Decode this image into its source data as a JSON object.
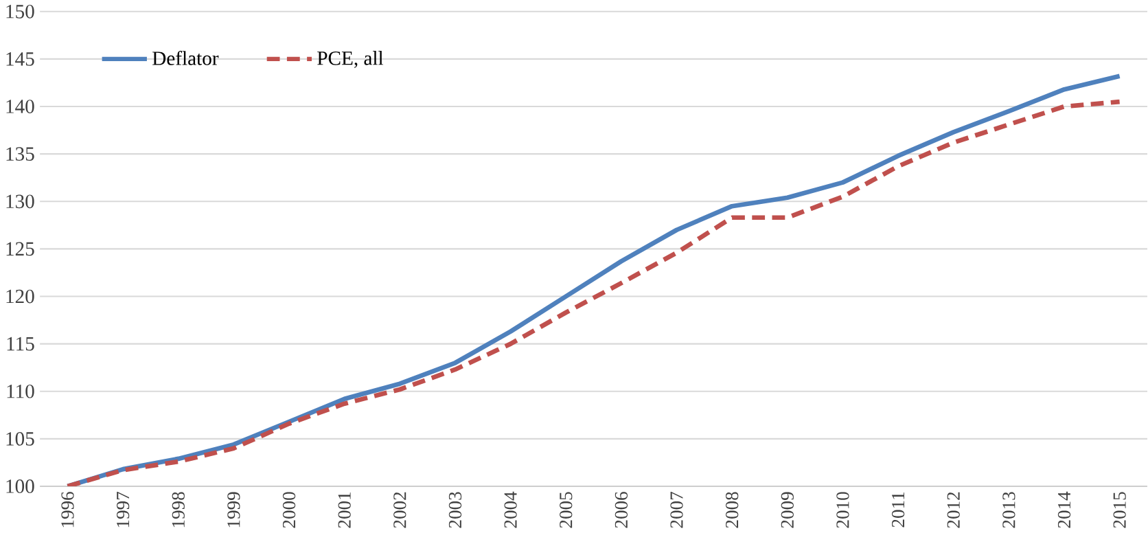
{
  "chart_data": {
    "type": "line",
    "categories": [
      "1996",
      "1997",
      "1998",
      "1999",
      "2000",
      "2001",
      "2002",
      "2003",
      "2004",
      "2005",
      "2006",
      "2007",
      "2008",
      "2009",
      "2010",
      "2011",
      "2012",
      "2013",
      "2014",
      "2015"
    ],
    "series": [
      {
        "name": "Deflator",
        "color": "#4f81bd",
        "line_style": "solid",
        "values": [
          100,
          101.8,
          102.9,
          104.4,
          106.8,
          109.2,
          110.8,
          113,
          116.3,
          120,
          123.7,
          127,
          129.5,
          130.4,
          132,
          134.8,
          137.3,
          139.5,
          141.8,
          143.2
        ]
      },
      {
        "name": "PCE, all",
        "color": "#c0504d",
        "line_style": "dashed",
        "values": [
          100,
          101.7,
          102.6,
          104,
          106.6,
          108.7,
          110.2,
          112.3,
          115,
          118.3,
          121.4,
          124.6,
          128.3,
          128.3,
          130.5,
          133.7,
          136.2,
          138.1,
          140,
          140.5
        ]
      }
    ],
    "ylim": [
      100,
      150
    ],
    "yticks": [
      100,
      105,
      110,
      115,
      120,
      125,
      130,
      135,
      140,
      145,
      150
    ],
    "grid": "y",
    "legend": "top left",
    "marker": "none"
  }
}
